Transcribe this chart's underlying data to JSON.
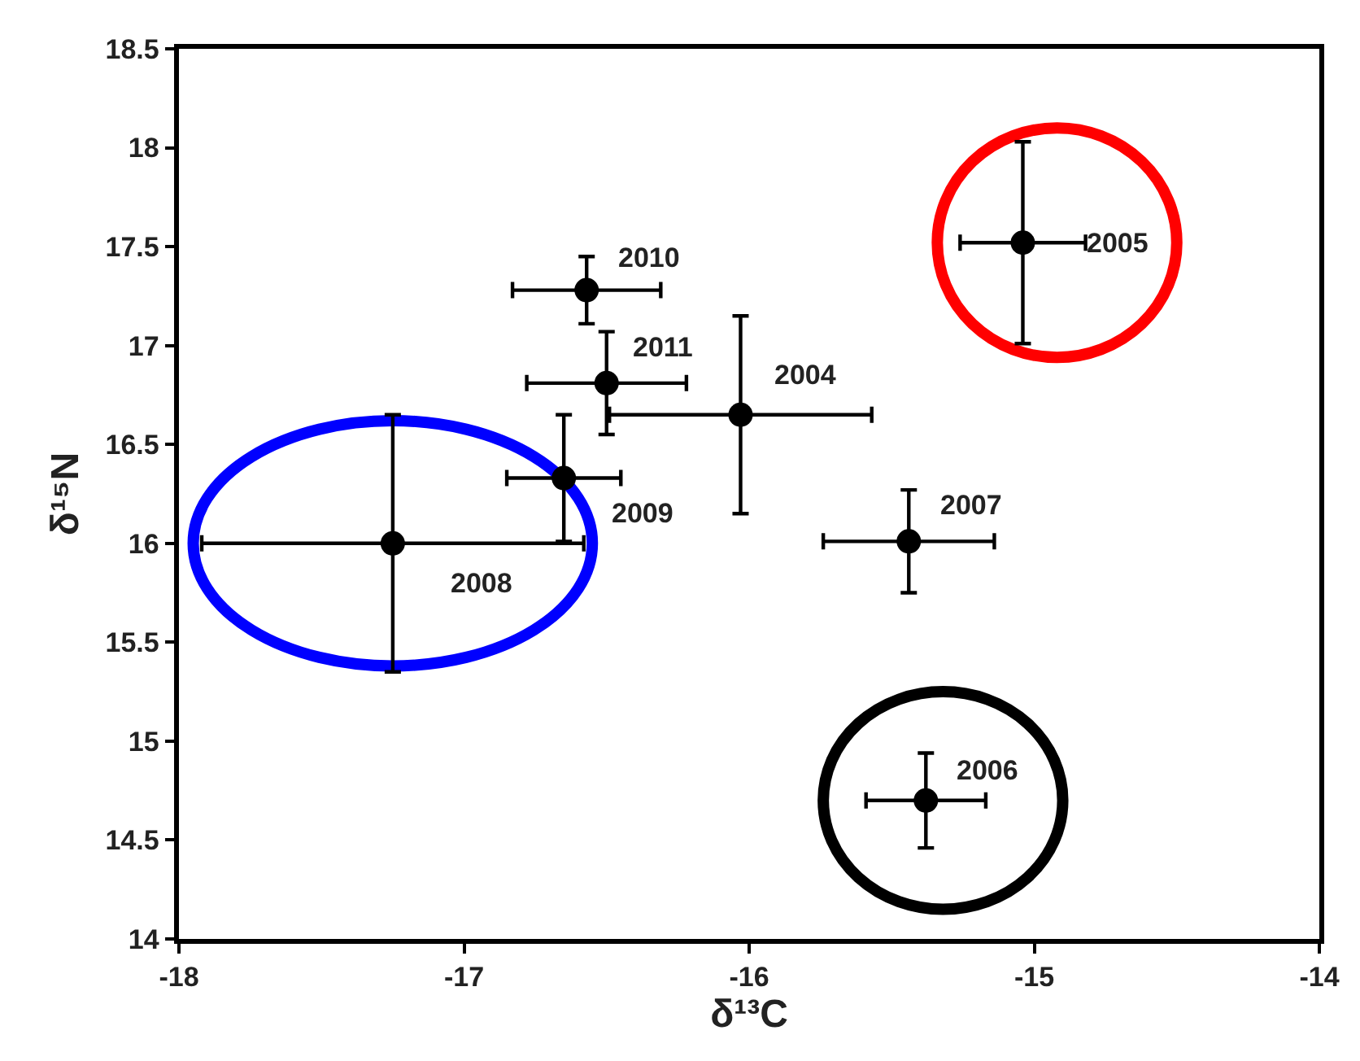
{
  "chart_data": {
    "type": "scatter",
    "xlabel": "δ¹³C",
    "ylabel": "δ¹⁵N",
    "x": [
      -16.57,
      -16.5,
      -16.03,
      -16.65,
      -17.25,
      -15.44,
      -15.04,
      -15.38
    ],
    "series": [
      {
        "color": "#000000",
        "values": [
          17.28,
          16.81,
          16.65,
          16.33,
          16.0,
          16.01,
          17.52,
          14.7
        ],
        "errors": [
          0.17,
          0.26,
          0.5,
          0.32,
          0.65,
          0.26,
          0.51,
          0.24
        ],
        "xerrors": [
          0.26,
          0.28,
          0.46,
          0.2,
          0.67,
          0.3,
          0.22,
          0.21
        ]
      }
    ],
    "annotations": [
      {
        "text": "2010",
        "x": -16.57,
        "y": 17.28
      },
      {
        "text": "2011",
        "x": -16.5,
        "y": 16.81
      },
      {
        "text": "2004",
        "x": -16.03,
        "y": 16.65
      },
      {
        "text": "2009",
        "x": -16.65,
        "y": 16.33
      },
      {
        "text": "2008",
        "x": -17.25,
        "y": 16.0
      },
      {
        "text": "2007",
        "x": -15.44,
        "y": 16.01
      },
      {
        "text": "2005",
        "x": -15.04,
        "y": 17.52
      },
      {
        "text": "2006",
        "x": -15.38,
        "y": 14.7
      }
    ],
    "xlim": [
      -18,
      -14
    ],
    "xticks": [
      -18,
      -17,
      -16,
      -15,
      -14
    ],
    "ylim": [
      14,
      18.5
    ],
    "yticks": [
      14,
      14.5,
      15,
      15.5,
      16,
      16.5,
      17,
      17.5,
      18,
      18.5
    ],
    "marker": "circle"
  }
}
